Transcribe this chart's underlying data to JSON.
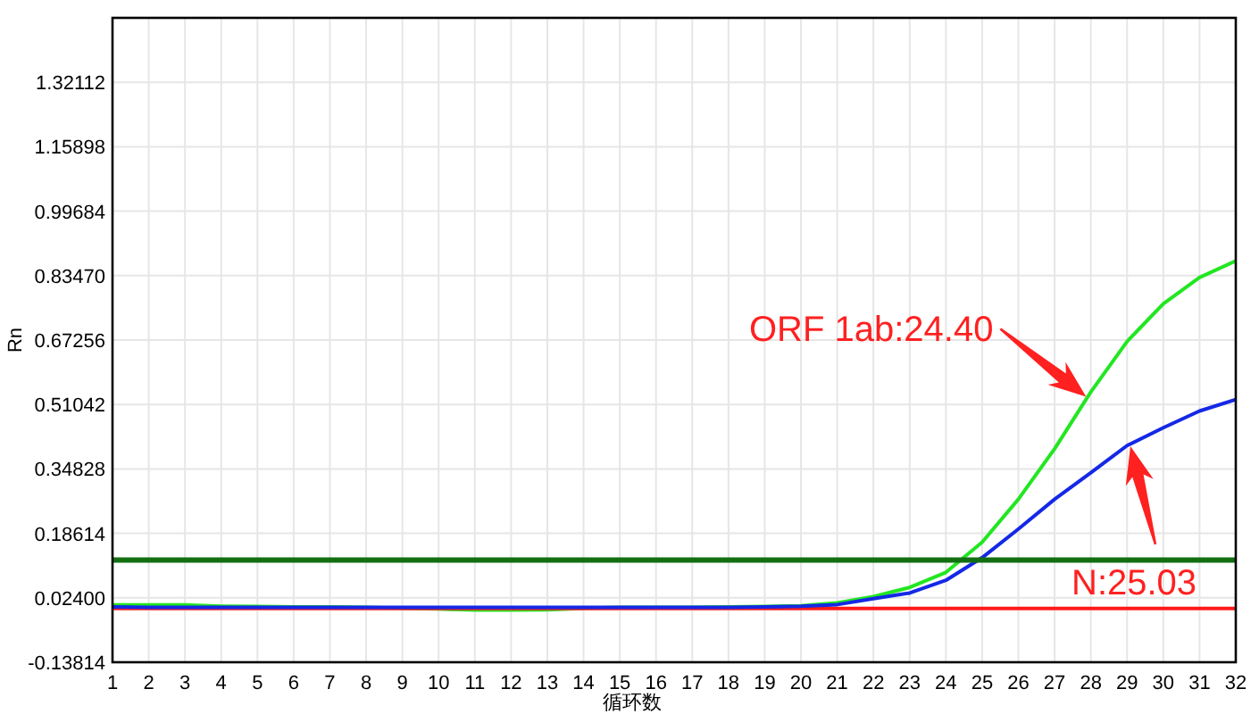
{
  "chart_data": {
    "type": "line",
    "xlabel": "循环数",
    "ylabel": "Rn",
    "x": [
      1,
      2,
      3,
      4,
      5,
      6,
      7,
      8,
      9,
      10,
      11,
      12,
      13,
      14,
      15,
      16,
      17,
      18,
      19,
      20,
      21,
      22,
      23,
      24,
      25,
      26,
      27,
      28,
      29,
      30,
      31,
      32
    ],
    "series": [
      {
        "color": "#22e622",
        "values": [
          0.006,
          0.006,
          0.006,
          0.003,
          0.002,
          0.001,
          0.001,
          0.0,
          -0.002,
          -0.004,
          -0.007,
          -0.007,
          -0.006,
          -0.002,
          0.0,
          0.0,
          0.0,
          0.001,
          0.002,
          0.004,
          0.011,
          0.027,
          0.05,
          0.088,
          0.164,
          0.272,
          0.399,
          0.542,
          0.669,
          0.764,
          0.83,
          0.872
        ]
      },
      {
        "color": "#ff1a1a",
        "values": [
          -0.003,
          -0.003,
          -0.003,
          -0.003,
          -0.003,
          -0.003,
          -0.003,
          -0.003,
          -0.003,
          -0.003,
          -0.003,
          -0.003,
          -0.003,
          -0.003,
          -0.003,
          -0.003,
          -0.003,
          -0.003,
          -0.003,
          -0.003,
          -0.003,
          -0.003,
          -0.003,
          -0.003,
          -0.003,
          -0.003,
          -0.003,
          -0.003,
          -0.003,
          -0.003,
          -0.003,
          -0.003
        ]
      },
      {
        "color": "#1428e6",
        "values": [
          0.001,
          0.0,
          0.0,
          0.0,
          0.0,
          0.0,
          0.0,
          0.0,
          0.0,
          0.0,
          0.0,
          0.0,
          0.0,
          0.0,
          0.0,
          0.0,
          0.0,
          0.0,
          0.001,
          0.003,
          0.007,
          0.022,
          0.036,
          0.068,
          0.125,
          0.197,
          0.272,
          0.339,
          0.407,
          0.452,
          0.494,
          0.523
        ]
      }
    ],
    "xlim": [
      1,
      32
    ],
    "xticks": [
      1,
      2,
      3,
      4,
      5,
      6,
      7,
      8,
      9,
      10,
      11,
      12,
      13,
      14,
      15,
      16,
      17,
      18,
      19,
      20,
      21,
      22,
      23,
      24,
      25,
      26,
      27,
      28,
      29,
      30,
      31,
      32
    ],
    "ylim": [
      -0.13814,
      1.48326
    ],
    "yticks": [
      -0.13814,
      {
        "value": 0.024,
        "label": "0.02400"
      },
      0.18614,
      0.34828,
      0.51042,
      0.67256,
      {
        "value": 0.8347,
        "label": "0.83470"
      },
      0.99684,
      1.15898,
      1.32112
    ],
    "ref_lines": [
      {
        "axis": "y",
        "value": 0.119,
        "color": "#127012"
      }
    ],
    "annotations": [
      {
        "text": "ORF 1ab:24.40",
        "x": 27.87,
        "y": 0.53
      },
      "N:25.03"
    ],
    "grid": true,
    "line_style": "solid"
  }
}
